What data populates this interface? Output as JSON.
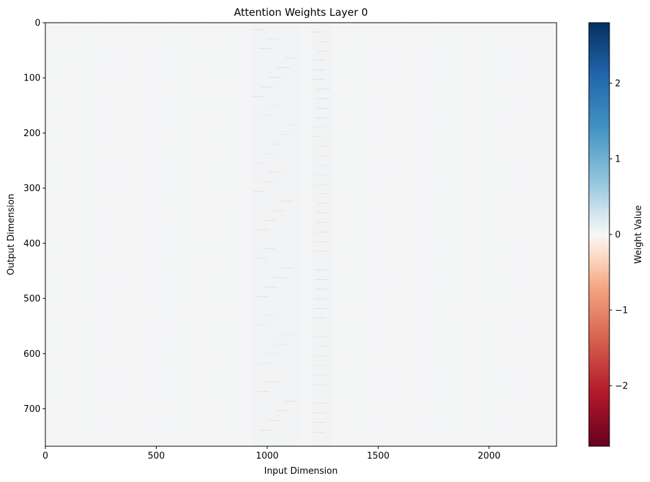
{
  "chart_data": {
    "type": "heatmap",
    "title": "Attention Weights Layer 0",
    "xlabel": "Input Dimension",
    "ylabel": "Output Dimension",
    "x_range": [
      0,
      2304
    ],
    "y_range": [
      768,
      0
    ],
    "x_ticks": [
      0,
      500,
      1000,
      1500,
      2000
    ],
    "y_ticks": [
      0,
      100,
      200,
      300,
      400,
      500,
      600,
      700
    ],
    "colorbar": {
      "label": "Weight Value",
      "colormap": "RdBu",
      "range": [
        -2.8,
        2.8
      ],
      "ticks": [
        -2,
        -1,
        0,
        1,
        2
      ],
      "tick_labels": [
        "−2",
        "−1",
        "0",
        "1",
        "2"
      ]
    },
    "dominant_value": 0,
    "notes_visible": "near-uniform field of values close to 0 with faint speckle bands",
    "highlight_bands_x": [
      [
        930,
        1150
      ],
      [
        1200,
        1290
      ]
    ],
    "colors": {
      "neg_extreme": "#67001f",
      "neg_mid": "#d6604d",
      "neg_light": "#fddbc7",
      "zero": "#f7f7f7",
      "pos_light": "#d1e5f0",
      "pos_mid": "#4393c3",
      "pos_extreme": "#053061"
    }
  }
}
